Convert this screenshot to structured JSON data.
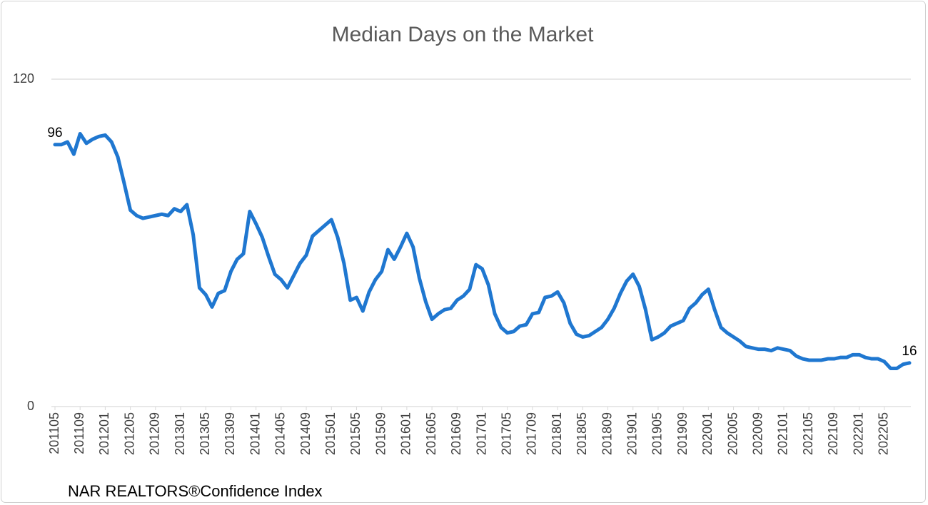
{
  "chart_data": {
    "type": "line",
    "title": "Median Days on the Market",
    "source": "NAR REALTORS®Confidence Index",
    "categories": [
      "201105",
      null,
      null,
      null,
      "201109",
      null,
      null,
      null,
      "201201",
      null,
      null,
      null,
      "201205",
      null,
      null,
      null,
      "201209",
      null,
      null,
      null,
      "201301",
      null,
      null,
      null,
      "201305",
      null,
      null,
      null,
      "201309",
      null,
      null,
      null,
      "201401",
      null,
      null,
      null,
      "201405",
      null,
      null,
      null,
      "201409",
      null,
      null,
      null,
      "201501",
      null,
      null,
      null,
      "201505",
      null,
      null,
      null,
      "201509",
      null,
      null,
      null,
      "201601",
      null,
      null,
      null,
      "201605",
      null,
      null,
      null,
      "201609",
      null,
      null,
      null,
      "201701",
      null,
      null,
      null,
      "201705",
      null,
      null,
      null,
      "201709",
      null,
      null,
      null,
      "201801",
      null,
      null,
      null,
      "201805",
      null,
      null,
      null,
      "201809",
      null,
      null,
      null,
      "201901",
      null,
      null,
      null,
      "201905",
      null,
      null,
      null,
      "201909",
      null,
      null,
      null,
      "202001",
      null,
      null,
      null,
      "202005",
      null,
      null,
      null,
      "202009",
      null,
      null,
      null,
      "202101",
      null,
      null,
      null,
      "202105",
      null,
      null,
      null,
      "202109",
      null,
      null,
      null,
      "202201",
      null,
      null,
      null,
      "202205",
      null,
      null,
      null,
      null
    ],
    "series": [
      {
        "color": "#1f77d0",
        "values": [
          96,
          96,
          97,
          92.5,
          100,
          96.5,
          98,
          99,
          99.5,
          97,
          91.5,
          82,
          72,
          70,
          69,
          69.5,
          70,
          70.5,
          70,
          72.5,
          71.5,
          74,
          63,
          43.5,
          41,
          36.5,
          41.5,
          42.5,
          49.5,
          54,
          56,
          71.5,
          67,
          62,
          55,
          48.5,
          46.5,
          43.5,
          48,
          52.5,
          55.5,
          62.5,
          64.5,
          66.5,
          68.5,
          62,
          52.5,
          39,
          40,
          35,
          42,
          46.5,
          49.5,
          57.5,
          54,
          58.5,
          63.5,
          58.5,
          47,
          38.5,
          32,
          34,
          35.5,
          36,
          39,
          40.5,
          43,
          52,
          50.5,
          44.5,
          34,
          29,
          27,
          27.5,
          29.5,
          30,
          34,
          34.5,
          40,
          40.5,
          42,
          38,
          30.5,
          26.5,
          25.5,
          26,
          27.5,
          29,
          32,
          36,
          41.5,
          46,
          48.5,
          44,
          35.5,
          24.5,
          25.5,
          27,
          29.5,
          30.5,
          31.5,
          36,
          38,
          41,
          43,
          35.5,
          29,
          27,
          25.5,
          24,
          22,
          21.5,
          21,
          21,
          20.5,
          21.5,
          21,
          20.5,
          18.5,
          17.5,
          17,
          17,
          17,
          17.5,
          17.5,
          18,
          18,
          19,
          19,
          18,
          17.5,
          17.5,
          16.5,
          14,
          14,
          15.5,
          16
        ]
      }
    ],
    "labeled_points": [
      0,
      136
    ],
    "ylim": [
      0,
      120
    ],
    "yticks": [
      0,
      120
    ],
    "grid": true
  }
}
